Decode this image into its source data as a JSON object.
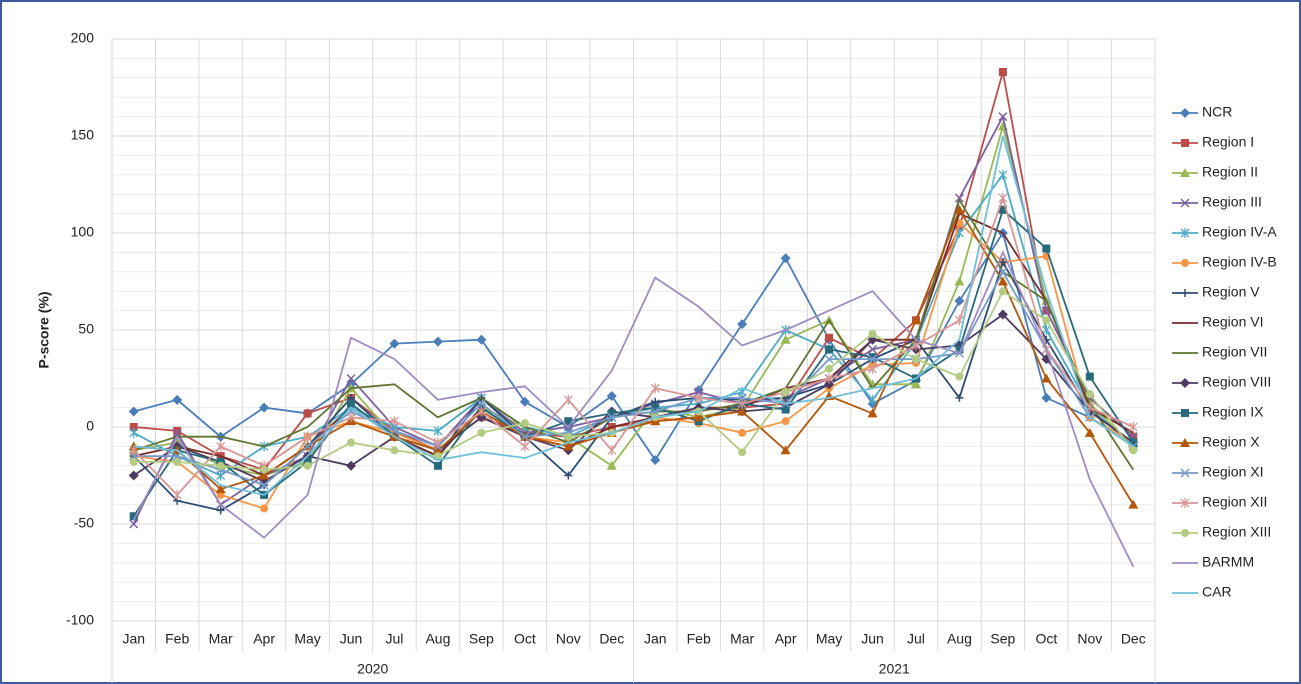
{
  "chart_data": {
    "type": "line",
    "y_label": "P-score (%)",
    "categories": [
      "Jan",
      "Feb",
      "Mar",
      "Apr",
      "May",
      "Jun",
      "Jul",
      "Aug",
      "Sep",
      "Oct",
      "Nov",
      "Dec",
      "Jan",
      "Feb",
      "Mar",
      "Apr",
      "May",
      "Jun",
      "Jul",
      "Aug",
      "Sep",
      "Oct",
      "Nov",
      "Dec"
    ],
    "groups": [
      "2020",
      "2021"
    ],
    "ylim": [
      -100,
      200
    ],
    "yticks": [
      -100,
      -50,
      0,
      50,
      100,
      150,
      200
    ],
    "yminorticks": [
      -90,
      -80,
      -70,
      -60,
      -40,
      -30,
      -20,
      -10,
      10,
      20,
      30,
      40,
      60,
      70,
      80,
      90,
      110,
      120,
      130,
      140,
      160,
      170,
      180,
      190
    ],
    "grid": true,
    "legend": "right",
    "series": [
      {
        "name": "NCR",
        "color": "#4a7ebb",
        "marker": "diamond",
        "values": [
          8,
          14,
          -5,
          10,
          7,
          22,
          43,
          44,
          45,
          13,
          0,
          16,
          -17,
          19,
          53,
          87,
          45,
          12,
          24,
          65,
          100,
          15,
          5,
          -10
        ]
      },
      {
        "name": "Region I",
        "color": "#be4b48",
        "marker": "square",
        "values": [
          0,
          -2,
          -15,
          -22,
          7,
          15,
          -2,
          -12,
          5,
          -3,
          -5,
          0,
          3,
          5,
          10,
          12,
          46,
          35,
          55,
          103,
          183,
          60,
          15,
          -5
        ]
      },
      {
        "name": "Region II",
        "color": "#98b954",
        "marker": "triangle",
        "values": [
          -12,
          -8,
          -20,
          -25,
          -18,
          20,
          -5,
          -15,
          10,
          0,
          -5,
          -20,
          10,
          5,
          10,
          45,
          55,
          22,
          22,
          75,
          155,
          65,
          12,
          -10
        ]
      },
      {
        "name": "Region III",
        "color": "#7d60a0",
        "marker": "x",
        "values": [
          -50,
          -3,
          -40,
          -25,
          -15,
          25,
          0,
          -10,
          15,
          -3,
          0,
          5,
          12,
          18,
          12,
          15,
          25,
          40,
          45,
          118,
          160,
          60,
          15,
          -5
        ]
      },
      {
        "name": "Region IV-A",
        "color": "#4bacc6",
        "marker": "star",
        "values": [
          -3,
          -15,
          -25,
          -10,
          -5,
          10,
          0,
          -2,
          15,
          0,
          -5,
          5,
          10,
          12,
          18,
          50,
          40,
          14,
          44,
          100,
          130,
          50,
          10,
          -10
        ]
      },
      {
        "name": "Region IV-B",
        "color": "#f79646",
        "marker": "circle",
        "values": [
          -15,
          -18,
          -35,
          -42,
          -5,
          3,
          -3,
          -12,
          5,
          -5,
          -8,
          -3,
          5,
          2,
          -3,
          3,
          20,
          32,
          33,
          105,
          85,
          88,
          5,
          -8
        ]
      },
      {
        "name": "Region V",
        "color": "#2c4d75",
        "marker": "plus",
        "values": [
          -15,
          -38,
          -43,
          -30,
          -10,
          15,
          -5,
          -15,
          15,
          -5,
          -25,
          5,
          13,
          15,
          14,
          15,
          22,
          35,
          45,
          15,
          85,
          45,
          8,
          -8
        ]
      },
      {
        "name": "Region VI",
        "color": "#772c2a",
        "marker": "none",
        "values": [
          -15,
          -10,
          -15,
          -25,
          -10,
          10,
          -5,
          -15,
          10,
          -5,
          -10,
          0,
          5,
          10,
          10,
          20,
          25,
          45,
          45,
          110,
          100,
          65,
          10,
          -3
        ]
      },
      {
        "name": "Region VII",
        "color": "#5f7530",
        "marker": "none",
        "values": [
          -12,
          -5,
          -5,
          -10,
          0,
          20,
          22,
          5,
          15,
          0,
          -8,
          5,
          8,
          8,
          12,
          20,
          55,
          20,
          45,
          117,
          80,
          65,
          12,
          -22
        ]
      },
      {
        "name": "Region VIII",
        "color": "#4d3b62",
        "marker": "diamond",
        "values": [
          -25,
          -10,
          -18,
          -28,
          -15,
          -20,
          -5,
          -12,
          5,
          -5,
          -12,
          8,
          5,
          10,
          8,
          10,
          22,
          45,
          40,
          42,
          58,
          35,
          8,
          -8
        ]
      },
      {
        "name": "Region IX",
        "color": "#276a7c",
        "marker": "square",
        "values": [
          -46,
          -12,
          -18,
          -35,
          -18,
          12,
          -5,
          -20,
          10,
          -5,
          3,
          7,
          10,
          3,
          12,
          9,
          40,
          36,
          25,
          40,
          112,
          92,
          26,
          -8
        ]
      },
      {
        "name": "Region X",
        "color": "#b65708",
        "marker": "triangle",
        "values": [
          -10,
          -12,
          -32,
          -25,
          -10,
          3,
          -5,
          -12,
          8,
          -5,
          -10,
          -3,
          3,
          5,
          8,
          -12,
          16,
          7,
          55,
          112,
          75,
          25,
          -3,
          -40
        ]
      },
      {
        "name": "Region XI",
        "color": "#729aca",
        "marker": "x",
        "values": [
          -15,
          -15,
          -22,
          -30,
          -10,
          8,
          -2,
          -10,
          12,
          -5,
          -3,
          5,
          8,
          15,
          15,
          12,
          35,
          35,
          35,
          38,
          80,
          40,
          5,
          -10
        ]
      },
      {
        "name": "Region XII",
        "color": "#d99694",
        "marker": "star",
        "values": [
          -12,
          -35,
          -10,
          -20,
          -5,
          5,
          3,
          -8,
          8,
          -10,
          14,
          -12,
          20,
          15,
          12,
          18,
          25,
          30,
          42,
          55,
          118,
          40,
          10,
          0
        ]
      },
      {
        "name": "Region XIII",
        "color": "#b3cc82",
        "marker": "circle",
        "values": [
          -18,
          -18,
          -20,
          -22,
          -20,
          -8,
          -12,
          -15,
          -3,
          2,
          -5,
          -3,
          5,
          8,
          -13,
          18,
          30,
          48,
          35,
          26,
          70,
          55,
          17,
          -12
        ]
      },
      {
        "name": "BARMM",
        "color": "#a08cc0",
        "marker": "none",
        "values": [
          -48,
          -5,
          -40,
          -57,
          -35,
          46,
          35,
          14,
          18,
          21,
          0,
          29,
          77,
          62,
          42,
          50,
          60,
          70,
          45,
          38,
          90,
          40,
          -27,
          -72
        ]
      },
      {
        "name": "CAR",
        "color": "#6fc0da",
        "marker": "none",
        "values": [
          -10,
          -12,
          -30,
          -35,
          -15,
          10,
          -5,
          -17,
          -13,
          -16,
          -8,
          -3,
          5,
          8,
          20,
          12,
          15,
          20,
          25,
          45,
          150,
          70,
          5,
          -10
        ]
      }
    ]
  }
}
